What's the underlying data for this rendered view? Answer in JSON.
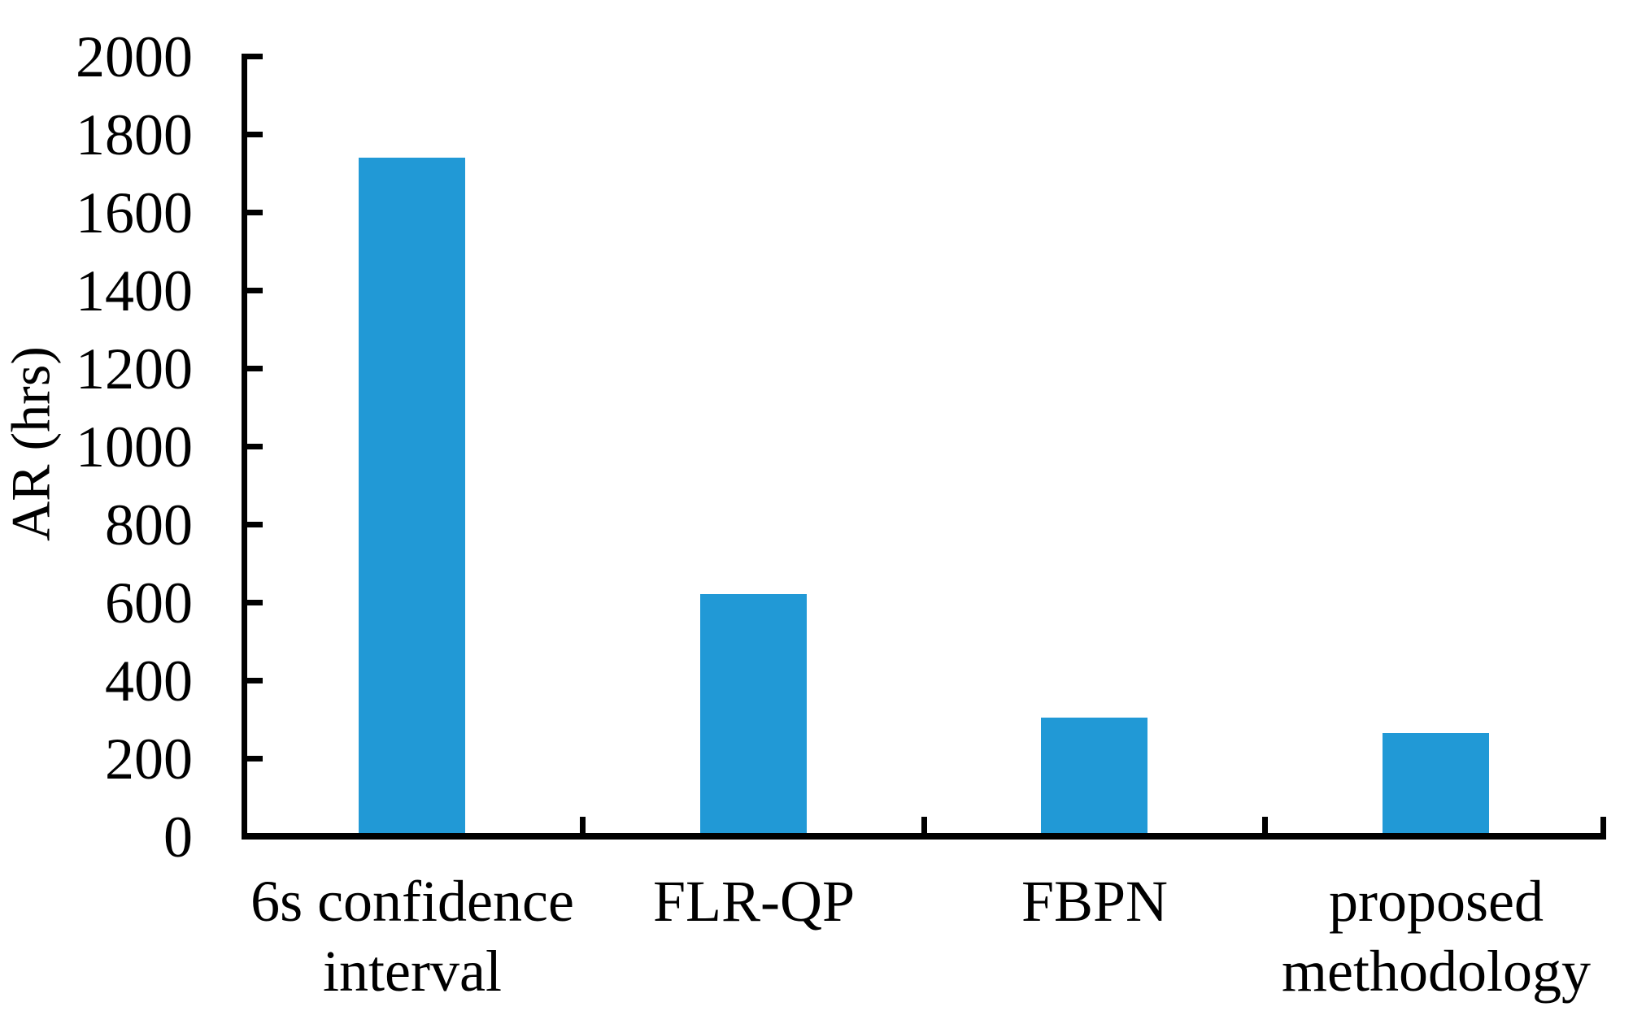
{
  "chart_data": {
    "type": "bar",
    "title": "",
    "xlabel": "",
    "ylabel": "AR (hrs)",
    "categories": [
      "6s confidence\ninterval",
      "FLR-QP",
      "FBPN",
      "proposed\nmethodology"
    ],
    "values": [
      1740,
      620,
      305,
      265
    ],
    "ylim": [
      0,
      2000
    ],
    "ytick_step": 200,
    "yticks": [
      0,
      200,
      400,
      600,
      800,
      1000,
      1200,
      1400,
      1600,
      1800,
      2000
    ],
    "bar_color": "#2199d6",
    "axis_color": "#000000",
    "grid": false,
    "legend_position": "none"
  }
}
